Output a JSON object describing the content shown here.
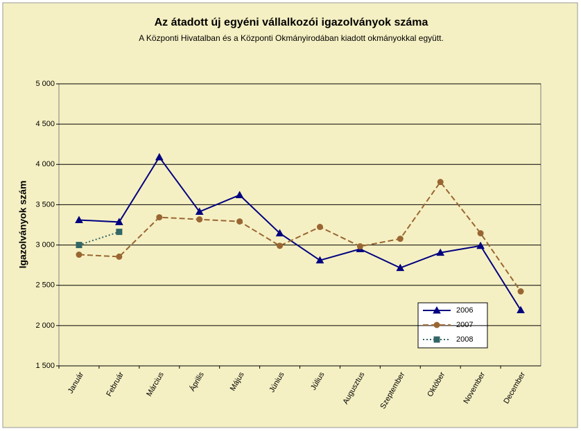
{
  "chart_data": {
    "type": "line",
    "title": "Az átadott új egyéni vállalkozói  igazolványok száma",
    "subtitle": "A Központi Hivatalban és a Központi Okmányirodában kiadott okmányokkal együtt.",
    "y_label": "Igazolványok szám",
    "categories": [
      "Január",
      "Február",
      "Március",
      "Április",
      "Május",
      "Június",
      "Július",
      "Augusztus",
      "Szeptember",
      "Október",
      "November",
      "December"
    ],
    "series": [
      {
        "name": "2006",
        "color": "#000080",
        "marker": "triangle",
        "dash": "solid",
        "values": [
          3310,
          3285,
          4090,
          3413,
          3620,
          3146,
          2810,
          2950,
          2716,
          2905,
          2990,
          2192
        ]
      },
      {
        "name": "2007",
        "color": "#996633",
        "marker": "circle",
        "dash": "dashed",
        "values": [
          2880,
          2855,
          3344,
          3318,
          3292,
          2990,
          3224,
          2983,
          3077,
          3782,
          3146,
          2424
        ]
      },
      {
        "name": "2008",
        "color": "#336666",
        "marker": "square",
        "dash": "dotted",
        "values": [
          3000,
          3163,
          null,
          null,
          null,
          null,
          null,
          null,
          null,
          null,
          null,
          null
        ]
      }
    ],
    "ylim": [
      1500,
      5000
    ],
    "yticks": [
      {
        "value": 1500,
        "label": "1 500"
      },
      {
        "value": 2000,
        "label": "2 000"
      },
      {
        "value": 2500,
        "label": "2 500"
      },
      {
        "value": 3000,
        "label": "3 000"
      },
      {
        "value": 3500,
        "label": "3 500"
      },
      {
        "value": 4000,
        "label": "4 000"
      },
      {
        "value": 4500,
        "label": "4 500"
      },
      {
        "value": 5000,
        "label": "5 000"
      }
    ],
    "grid": true
  }
}
